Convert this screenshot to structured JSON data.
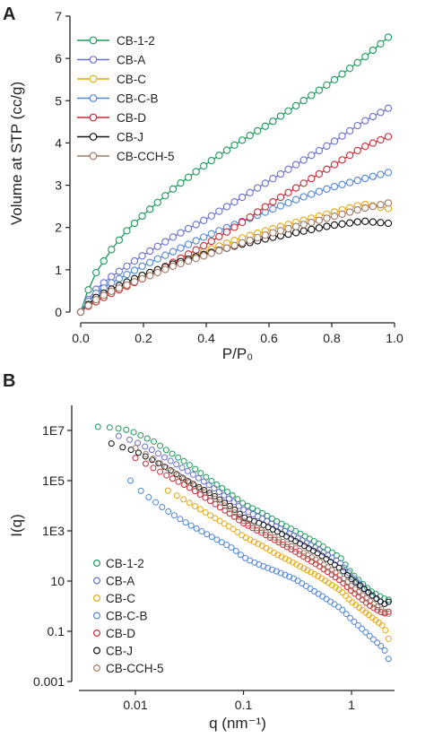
{
  "panels": {
    "a": {
      "label": "A"
    },
    "b": {
      "label": "B"
    }
  },
  "chart_data": [
    {
      "type": "line",
      "xlabel": "P/P₀",
      "ylabel": "Volume at STP (cc/g)",
      "xlim": [
        0,
        1.0
      ],
      "ylim": [
        0,
        7
      ],
      "xticks": [
        "0.0",
        "0.2",
        "0.4",
        "0.6",
        "0.8",
        "1.0"
      ],
      "yticks": [
        "0",
        "1",
        "2",
        "3",
        "4",
        "5",
        "6",
        "7"
      ],
      "legend_position": "top-left",
      "markers": "open circles",
      "series": [
        {
          "name": "CB-1-2",
          "color": "#1a9a5c",
          "x": [
            0,
            0.02,
            0.05,
            0.1,
            0.15,
            0.2,
            0.3,
            0.4,
            0.5,
            0.6,
            0.7,
            0.8,
            0.9,
            0.98
          ],
          "y": [
            0,
            0.45,
            0.95,
            1.5,
            1.95,
            2.3,
            2.95,
            3.5,
            4.0,
            4.45,
            4.95,
            5.45,
            6.0,
            6.5
          ]
        },
        {
          "name": "CB-A",
          "color": "#6a6fd0",
          "x": [
            0,
            0.02,
            0.05,
            0.1,
            0.15,
            0.2,
            0.3,
            0.4,
            0.5,
            0.6,
            0.7,
            0.8,
            0.9,
            0.98
          ],
          "y": [
            0,
            0.25,
            0.55,
            0.85,
            1.1,
            1.35,
            1.8,
            2.2,
            2.65,
            3.1,
            3.55,
            4.0,
            4.5,
            4.82
          ]
        },
        {
          "name": "CB-C",
          "color": "#e5a914",
          "x": [
            0,
            0.02,
            0.05,
            0.1,
            0.15,
            0.2,
            0.3,
            0.4,
            0.5,
            0.6,
            0.7,
            0.8,
            0.9,
            0.98
          ],
          "y": [
            0,
            0.12,
            0.3,
            0.5,
            0.68,
            0.85,
            1.15,
            1.45,
            1.72,
            1.95,
            2.15,
            2.35,
            2.55,
            2.45
          ]
        },
        {
          "name": "CB-C-B",
          "color": "#4f86d6",
          "x": [
            0,
            0.02,
            0.05,
            0.1,
            0.15,
            0.2,
            0.3,
            0.4,
            0.5,
            0.6,
            0.7,
            0.8,
            0.9,
            0.98
          ],
          "y": [
            0,
            0.22,
            0.45,
            0.7,
            0.9,
            1.1,
            1.45,
            1.8,
            2.1,
            2.4,
            2.7,
            2.95,
            3.15,
            3.3
          ]
        },
        {
          "name": "CB-D",
          "color": "#cc2a36",
          "x": [
            0,
            0.02,
            0.05,
            0.1,
            0.15,
            0.2,
            0.3,
            0.4,
            0.5,
            0.6,
            0.7,
            0.8,
            0.9,
            0.98
          ],
          "y": [
            0,
            0.12,
            0.25,
            0.45,
            0.62,
            0.8,
            1.2,
            1.6,
            2.05,
            2.55,
            3.0,
            3.45,
            3.9,
            4.15
          ]
        },
        {
          "name": "CB-J",
          "color": "#111111",
          "x": [
            0,
            0.02,
            0.05,
            0.1,
            0.15,
            0.2,
            0.3,
            0.4,
            0.5,
            0.6,
            0.7,
            0.8,
            0.9,
            0.98
          ],
          "y": [
            0,
            0.15,
            0.35,
            0.55,
            0.72,
            0.88,
            1.15,
            1.38,
            1.58,
            1.75,
            1.9,
            2.05,
            2.15,
            2.1
          ]
        },
        {
          "name": "CB-CCH-5",
          "color": "#a07a66",
          "x": [
            0,
            0.02,
            0.05,
            0.1,
            0.15,
            0.2,
            0.3,
            0.4,
            0.5,
            0.6,
            0.7,
            0.8,
            0.9,
            0.98
          ],
          "y": [
            0,
            0.13,
            0.3,
            0.5,
            0.65,
            0.8,
            1.1,
            1.35,
            1.6,
            1.85,
            2.05,
            2.25,
            2.45,
            2.58
          ]
        }
      ]
    },
    {
      "type": "scatter",
      "xlabel": "q (nm⁻¹)",
      "ylabel": "I(q)",
      "xscale": "log",
      "yscale": "log",
      "xlim": [
        0.003,
        2.5
      ],
      "ylim": [
        0.001,
        100000000
      ],
      "xticks": [
        {
          "value": 0.01,
          "label": "0.01"
        },
        {
          "value": 0.1,
          "label": "0.1"
        },
        {
          "value": 1,
          "label": "1"
        }
      ],
      "yticks": [
        {
          "value": 0.001,
          "label": "0.001"
        },
        {
          "value": 0.1,
          "label": "0.1"
        },
        {
          "value": 10,
          "label": "10"
        },
        {
          "value": 1000,
          "label": "1E3"
        },
        {
          "value": 100000,
          "label": "1E5"
        },
        {
          "value": 10000000,
          "label": "1E7"
        }
      ],
      "legend_position": "bottom-left",
      "markers": "open circles",
      "series": [
        {
          "name": "CB-1-2",
          "color": "#1a9a5c",
          "x": [
            0.0045,
            0.006,
            0.008,
            0.01,
            0.015,
            0.02,
            0.03,
            0.05,
            0.08,
            0.1,
            0.15,
            0.2,
            0.3,
            0.5,
            0.8,
            1,
            1.5,
            2,
            2.2
          ],
          "y": [
            14000000,
            13000000,
            11000000,
            8000000,
            3500000,
            1500000,
            500000,
            100000,
            25000,
            12000,
            5000,
            2500,
            1000,
            300,
            80,
            20,
            4,
            2,
            1.8
          ]
        },
        {
          "name": "CB-A",
          "color": "#6a6fd0",
          "x": [
            0.007,
            0.008,
            0.01,
            0.015,
            0.02,
            0.03,
            0.05,
            0.08,
            0.1,
            0.15,
            0.2,
            0.3,
            0.5,
            0.8,
            1,
            1.5,
            2,
            2.2
          ],
          "y": [
            6000000,
            5000000,
            3500000,
            1500000,
            700000,
            250000,
            60000,
            15000,
            7000,
            3000,
            1500,
            600,
            180,
            50,
            15,
            3,
            1.2,
            1.5
          ]
        },
        {
          "name": "CB-C",
          "color": "#e5a914",
          "x": [
            0.02,
            0.03,
            0.05,
            0.08,
            0.1,
            0.15,
            0.2,
            0.3,
            0.5,
            0.8,
            1,
            1.5,
            2,
            2.2
          ],
          "y": [
            40000,
            15000,
            4000,
            1200,
            600,
            250,
            120,
            50,
            15,
            4,
            1.5,
            0.4,
            0.15,
            0.05
          ]
        },
        {
          "name": "CB-C-B",
          "color": "#4f86d6",
          "x": [
            0.009,
            0.012,
            0.02,
            0.03,
            0.05,
            0.08,
            0.1,
            0.12,
            0.15,
            0.2,
            0.3,
            0.5,
            0.8,
            1,
            1.5,
            2,
            2.2
          ],
          "y": [
            100000,
            30000,
            6000,
            2000,
            600,
            200,
            90,
            60,
            40,
            25,
            12,
            3,
            0.8,
            0.3,
            0.06,
            0.02,
            0.008
          ]
        },
        {
          "name": "CB-D",
          "color": "#cc2a36",
          "x": [
            0.01,
            0.015,
            0.02,
            0.03,
            0.05,
            0.08,
            0.1,
            0.15,
            0.2,
            0.3,
            0.5,
            0.8,
            1,
            1.5,
            2,
            2.2
          ],
          "y": [
            800000,
            300000,
            150000,
            60000,
            15000,
            4000,
            2000,
            800,
            400,
            150,
            40,
            10,
            4,
            1,
            0.5,
            0.6
          ]
        },
        {
          "name": "CB-J",
          "color": "#111111",
          "x": [
            0.006,
            0.008,
            0.01,
            0.015,
            0.02,
            0.03,
            0.05,
            0.08,
            0.1,
            0.15,
            0.2,
            0.3,
            0.5,
            0.8,
            1,
            1.5,
            2,
            2.2
          ],
          "y": [
            3000000,
            2000000,
            1500000,
            600000,
            300000,
            100000,
            30000,
            8000,
            3500,
            1800,
            1000,
            400,
            120,
            30,
            12,
            3,
            1.2,
            1.5
          ]
        },
        {
          "name": "CB-CCH-5",
          "color": "#a07a66",
          "x": [
            0.01,
            0.015,
            0.02,
            0.03,
            0.05,
            0.08,
            0.1,
            0.15,
            0.2,
            0.3,
            0.5,
            0.8,
            1,
            1.5,
            2,
            2.2
          ],
          "y": [
            2000000,
            700000,
            300000,
            100000,
            25000,
            6000,
            2500,
            1000,
            500,
            200,
            60,
            15,
            6,
            1.5,
            0.6,
            0.5
          ]
        }
      ]
    }
  ]
}
